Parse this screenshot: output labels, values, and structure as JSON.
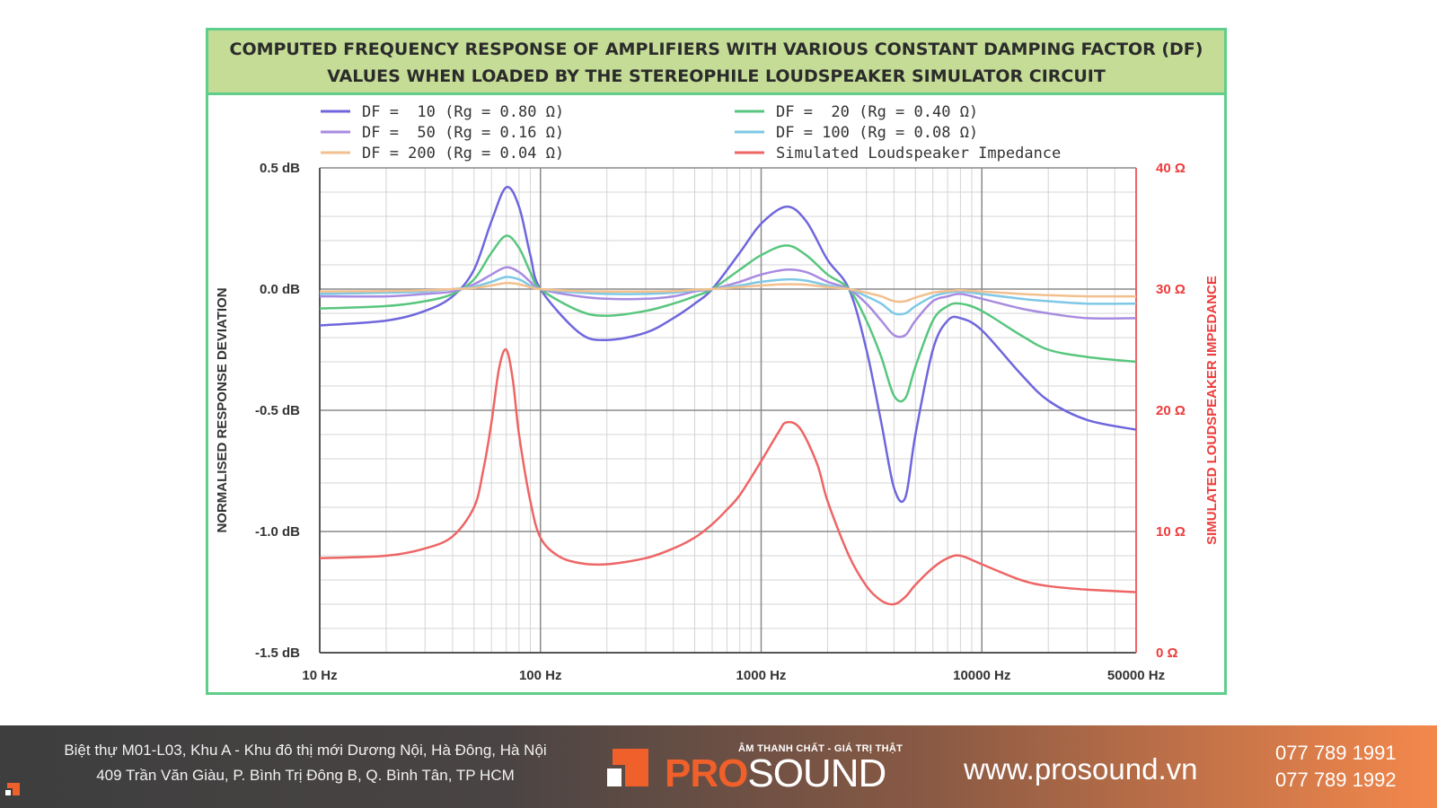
{
  "chart_data": {
    "type": "line",
    "title_line1": "COMPUTED FREQUENCY RESPONSE OF AMPLIFIERS WITH VARIOUS CONSTANT DAMPING FACTOR (DF)",
    "title_line2": "VALUES WHEN LOADED BY THE STEREOPHILE LOUDSPEAKER SIMULATOR CIRCUIT",
    "ylabel": "NORMALISED RESPONSE DEVIATION",
    "y2label": "SIMULATED LOUDSPEAKER IMPEDANCE",
    "xscale": "log",
    "xlim": [
      10,
      50000
    ],
    "ylim": [
      -1.5,
      0.5
    ],
    "y2lim": [
      0,
      40
    ],
    "grid": true,
    "xticks": [
      10,
      100,
      1000,
      10000,
      50000
    ],
    "xtick_labels": [
      "10 Hz",
      "100 Hz",
      "1000 Hz",
      "10000 Hz",
      "50000 Hz"
    ],
    "yticks": [
      0.5,
      0.0,
      -0.5,
      -1.0,
      -1.5
    ],
    "ytick_labels": [
      "0.5 dB",
      "0.0 dB",
      "-0.5 dB",
      "-1.0 dB",
      "-1.5 dB"
    ],
    "y2ticks": [
      40,
      30,
      20,
      10,
      0
    ],
    "y2tick_labels": [
      "40 Ω",
      "30 Ω",
      "20 Ω",
      "10 Ω",
      "0 Ω"
    ],
    "series": [
      {
        "name": "DF =  10 (Rg = 0.80 Ω)",
        "color": "#6f66dd",
        "axis": "left",
        "x": [
          10,
          20,
          30,
          40,
          50,
          60,
          70,
          80,
          90,
          100,
          150,
          200,
          300,
          400,
          500,
          600,
          800,
          1000,
          1300,
          1600,
          2000,
          2500,
          3000,
          3500,
          4000,
          4500,
          5000,
          6000,
          7000,
          8000,
          10000,
          15000,
          20000,
          30000,
          50000
        ],
        "y": [
          -0.15,
          -0.13,
          -0.09,
          -0.03,
          0.08,
          0.28,
          0.42,
          0.34,
          0.14,
          0.0,
          -0.18,
          -0.21,
          -0.18,
          -0.12,
          -0.06,
          0.0,
          0.15,
          0.27,
          0.34,
          0.28,
          0.12,
          0.0,
          -0.25,
          -0.55,
          -0.82,
          -0.86,
          -0.6,
          -0.25,
          -0.13,
          -0.12,
          -0.17,
          -0.35,
          -0.46,
          -0.54,
          -0.58
        ]
      },
      {
        "name": "DF =  20 (Rg = 0.40 Ω)",
        "color": "#58c67e",
        "axis": "left",
        "x": [
          10,
          20,
          30,
          40,
          50,
          60,
          70,
          80,
          90,
          100,
          150,
          200,
          300,
          400,
          500,
          600,
          800,
          1000,
          1300,
          1600,
          2000,
          2500,
          3000,
          3500,
          4000,
          4500,
          5000,
          6000,
          7000,
          8000,
          10000,
          15000,
          20000,
          30000,
          50000
        ],
        "y": [
          -0.08,
          -0.07,
          -0.05,
          -0.02,
          0.04,
          0.15,
          0.22,
          0.17,
          0.07,
          0.0,
          -0.09,
          -0.11,
          -0.09,
          -0.06,
          -0.03,
          0.0,
          0.08,
          0.14,
          0.18,
          0.14,
          0.06,
          0.0,
          -0.13,
          -0.28,
          -0.44,
          -0.45,
          -0.32,
          -0.13,
          -0.07,
          -0.06,
          -0.09,
          -0.19,
          -0.25,
          -0.28,
          -0.3
        ]
      },
      {
        "name": "DF =  50 (Rg = 0.16 Ω)",
        "color": "#a88be0",
        "axis": "left",
        "x": [
          10,
          20,
          30,
          40,
          50,
          60,
          70,
          80,
          90,
          100,
          150,
          200,
          300,
          400,
          500,
          600,
          800,
          1000,
          1300,
          1600,
          2000,
          2500,
          3000,
          3500,
          4000,
          4500,
          5000,
          6000,
          7000,
          8000,
          10000,
          15000,
          20000,
          30000,
          50000
        ],
        "y": [
          -0.03,
          -0.03,
          -0.02,
          -0.01,
          0.02,
          0.06,
          0.09,
          0.07,
          0.03,
          0.0,
          -0.03,
          -0.04,
          -0.04,
          -0.03,
          -0.01,
          0.0,
          0.03,
          0.06,
          0.08,
          0.07,
          0.03,
          0.0,
          -0.06,
          -0.13,
          -0.19,
          -0.19,
          -0.13,
          -0.05,
          -0.03,
          -0.02,
          -0.04,
          -0.08,
          -0.1,
          -0.12,
          -0.12
        ]
      },
      {
        "name": "DF = 100 (Rg = 0.08 Ω)",
        "color": "#7ec8e6",
        "axis": "left",
        "x": [
          10,
          20,
          30,
          40,
          50,
          60,
          70,
          80,
          90,
          100,
          150,
          200,
          300,
          400,
          500,
          600,
          800,
          1000,
          1300,
          1600,
          2000,
          2500,
          3000,
          3500,
          4000,
          4500,
          5000,
          6000,
          7000,
          8000,
          10000,
          15000,
          20000,
          30000,
          50000
        ],
        "y": [
          -0.02,
          -0.015,
          -0.01,
          0.0,
          0.01,
          0.03,
          0.05,
          0.04,
          0.015,
          0.0,
          -0.015,
          -0.02,
          -0.02,
          -0.015,
          -0.005,
          0.0,
          0.015,
          0.03,
          0.04,
          0.035,
          0.015,
          0.0,
          -0.03,
          -0.06,
          -0.1,
          -0.1,
          -0.07,
          -0.03,
          -0.015,
          -0.01,
          -0.02,
          -0.04,
          -0.05,
          -0.06,
          -0.06
        ]
      },
      {
        "name": "DF = 200 (Rg = 0.04 Ω)",
        "color": "#f2c08e",
        "axis": "left",
        "x": [
          10,
          20,
          30,
          40,
          50,
          60,
          70,
          80,
          90,
          100,
          150,
          200,
          300,
          400,
          500,
          600,
          800,
          1000,
          1300,
          1600,
          2000,
          2500,
          3000,
          3500,
          4000,
          4500,
          5000,
          6000,
          7000,
          8000,
          10000,
          15000,
          20000,
          30000,
          50000
        ],
        "y": [
          -0.01,
          -0.008,
          -0.005,
          0.0,
          0.005,
          0.015,
          0.025,
          0.02,
          0.008,
          0.0,
          -0.008,
          -0.01,
          -0.01,
          -0.008,
          -0.003,
          0.0,
          0.008,
          0.015,
          0.02,
          0.018,
          0.008,
          0.0,
          -0.015,
          -0.03,
          -0.05,
          -0.05,
          -0.035,
          -0.015,
          -0.008,
          -0.005,
          -0.01,
          -0.02,
          -0.025,
          -0.03,
          -0.03
        ]
      },
      {
        "name": "Simulated Loudspeaker Impedance",
        "color": "#ee6565",
        "axis": "right",
        "x": [
          10,
          20,
          30,
          40,
          50,
          55,
          60,
          65,
          70,
          75,
          80,
          90,
          100,
          120,
          150,
          200,
          300,
          400,
          500,
          600,
          700,
          800,
          1000,
          1200,
          1300,
          1500,
          1800,
          2000,
          2500,
          3000,
          3500,
          4000,
          4500,
          5000,
          6000,
          7000,
          8000,
          10000,
          15000,
          20000,
          30000,
          50000
        ],
        "y": [
          7.8,
          8.0,
          8.6,
          9.6,
          12.0,
          15.0,
          19.0,
          23.5,
          25.0,
          22.5,
          18.0,
          12.5,
          9.5,
          8.0,
          7.4,
          7.3,
          7.8,
          8.6,
          9.5,
          10.6,
          11.8,
          13.0,
          15.8,
          18.2,
          19.0,
          18.5,
          15.5,
          12.5,
          8.0,
          5.5,
          4.3,
          4.0,
          4.6,
          5.6,
          7.0,
          7.8,
          8.0,
          7.3,
          6.0,
          5.5,
          5.2,
          5.0
        ]
      }
    ],
    "legend_placement": "top"
  },
  "footer": {
    "address_line1": "Biệt thự M01-L03, Khu A - Khu đô thị mới Dương Nội, Hà Đông, Hà Nội",
    "address_line2": "409 Trần Văn Giàu, P. Bình Trị Đông B, Q. Bình Tân, TP HCM",
    "logo_tagline": "ÂM THANH CHẤT - GIÁ TRỊ THẬT",
    "logo_pro": "PRO",
    "logo_sound": "SOUND",
    "website": "www.prosound.vn",
    "phone1": "077 789 1991",
    "phone2": "077 789 1992",
    "accent_color": "#f0602a"
  }
}
